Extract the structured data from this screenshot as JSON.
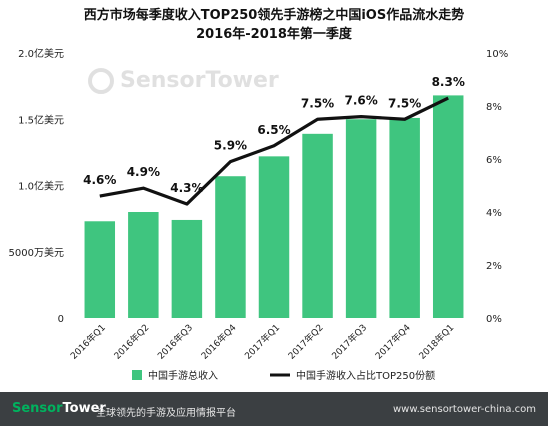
{
  "header": {
    "title_line1": "西方市场每季度收入TOP250领先手游榜之中国iOS作品流水走势",
    "title_line2": "2016年-2018年第一季度"
  },
  "watermark": {
    "text": "SensorTower",
    "icon": "sensor-tower-logo-icon"
  },
  "chart_data": {
    "type": "bar",
    "categories": [
      "2016年Q1",
      "2016年Q2",
      "2016年Q3",
      "2016年Q4",
      "2017年Q1",
      "2017年Q2",
      "2017年Q3",
      "2017年Q4",
      "2018年Q1"
    ],
    "left_axis": {
      "ticks": [
        "0",
        "5000万美元",
        "1.0亿美元",
        "1.5亿美元",
        "2.0亿美元"
      ],
      "ylim": [
        0,
        200000000
      ]
    },
    "right_axis": {
      "ticks": [
        "0%",
        "2%",
        "4%",
        "6%",
        "8%",
        "10%"
      ],
      "ylim": [
        0,
        10
      ]
    },
    "series": [
      {
        "name": "中国手游总收入",
        "type": "bar",
        "color": "#3fc57f",
        "values": [
          73000000,
          80000000,
          74000000,
          107000000,
          122000000,
          139000000,
          150000000,
          151000000,
          168000000
        ]
      },
      {
        "name": "中国手游收入占比TOP250份额",
        "type": "line",
        "color": "#111111",
        "values": [
          4.6,
          4.9,
          4.3,
          5.9,
          6.5,
          7.5,
          7.6,
          7.5,
          8.3
        ],
        "labels": [
          "4.6%",
          "4.9%",
          "4.3%",
          "5.9%",
          "6.5%",
          "7.5%",
          "7.6%",
          "7.5%",
          "8.3%"
        ]
      }
    ],
    "legend_placement": "bottom",
    "grid": false
  },
  "footer": {
    "brand_prefix": "Sensor",
    "brand_suffix": "Tower",
    "slogan": "全球领先的手游及应用情报平台",
    "website": "www.sensortower-china.com"
  }
}
